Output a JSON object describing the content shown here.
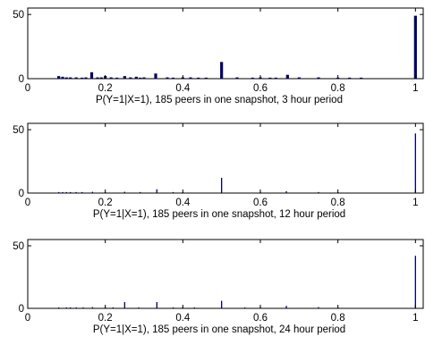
{
  "figure": {
    "colors": {
      "bars": "#000060",
      "axes": "#000000",
      "background": "#ffffff"
    }
  },
  "chart_data": [
    {
      "type": "bar",
      "title": "",
      "xlabel": "P(Y=1|X=1), 185 peers in one snapshot, 3 hour period",
      "ylabel": "",
      "xlim": [
        0,
        1.02
      ],
      "ylim": [
        0,
        55
      ],
      "xticks": [
        0,
        0.2,
        0.4,
        0.6,
        0.8,
        1
      ],
      "xtick_labels": [
        "0",
        "0.2",
        "0.4",
        "0.6",
        "0.8",
        "1"
      ],
      "yticks": [
        0,
        50
      ],
      "ytick_labels": [
        "0",
        "50"
      ],
      "x": [
        0.08,
        0.09,
        0.1,
        0.11,
        0.125,
        0.14,
        0.15,
        0.165,
        0.18,
        0.19,
        0.2,
        0.215,
        0.23,
        0.25,
        0.265,
        0.28,
        0.29,
        0.3,
        0.33,
        0.36,
        0.375,
        0.4,
        0.42,
        0.44,
        0.46,
        0.5,
        0.54,
        0.58,
        0.6,
        0.625,
        0.64,
        0.67,
        0.7,
        0.75,
        0.8,
        0.83,
        0.86,
        1.0
      ],
      "values": [
        2,
        1.5,
        1,
        1,
        1,
        0.8,
        1,
        5,
        1,
        1,
        2,
        1,
        0.8,
        2,
        1,
        1.5,
        0.8,
        1,
        4,
        1,
        0.8,
        1,
        1,
        0.8,
        0.8,
        13,
        1,
        0.8,
        1,
        0.8,
        0.8,
        3,
        1,
        1,
        0.8,
        0.8,
        0.8,
        49
      ]
    },
    {
      "type": "bar",
      "title": "",
      "xlabel": "P(Y=1|X=1), 185 peers in one snapshot, 12 hour period",
      "ylabel": "",
      "xlim": [
        0,
        1.02
      ],
      "ylim": [
        0,
        55
      ],
      "xticks": [
        0,
        0.2,
        0.4,
        0.6,
        0.8,
        1
      ],
      "xtick_labels": [
        "0",
        "0.2",
        "0.4",
        "0.6",
        "0.8",
        "1"
      ],
      "yticks": [
        0,
        50
      ],
      "ytick_labels": [
        "0",
        "50"
      ],
      "x": [
        0.08,
        0.09,
        0.1,
        0.11,
        0.125,
        0.14,
        0.167,
        0.2,
        0.25,
        0.29,
        0.333,
        0.375,
        0.4,
        0.5,
        0.6,
        0.667,
        0.75,
        0.8,
        1.0
      ],
      "values": [
        0.8,
        0.8,
        0.8,
        0.8,
        0.8,
        0.8,
        1,
        0.8,
        1,
        0.8,
        3,
        0.8,
        0.8,
        12,
        0.8,
        1.5,
        0.8,
        0.8,
        47
      ]
    },
    {
      "type": "bar",
      "title": "",
      "xlabel": "P(Y=1|X=1), 185 peers in one snapshot, 24 hour period",
      "ylabel": "",
      "xlim": [
        0,
        1.02
      ],
      "ylim": [
        0,
        55
      ],
      "xticks": [
        0,
        0.2,
        0.4,
        0.6,
        0.8,
        1
      ],
      "xtick_labels": [
        "0",
        "0.2",
        "0.4",
        "0.6",
        "0.8",
        "1"
      ],
      "yticks": [
        0,
        50
      ],
      "ytick_labels": [
        "0",
        "50"
      ],
      "x": [
        0.08,
        0.1,
        0.11,
        0.125,
        0.143,
        0.167,
        0.2,
        0.22,
        0.25,
        0.286,
        0.333,
        0.375,
        0.4,
        0.43,
        0.5,
        0.56,
        0.6,
        0.667,
        0.75,
        0.8,
        1.0
      ],
      "values": [
        0.8,
        0.8,
        0.8,
        0.8,
        0.8,
        1,
        1,
        0.8,
        5,
        0.8,
        5,
        0.8,
        1,
        0.8,
        6,
        0.8,
        1,
        2,
        1,
        0.8,
        42
      ]
    }
  ]
}
